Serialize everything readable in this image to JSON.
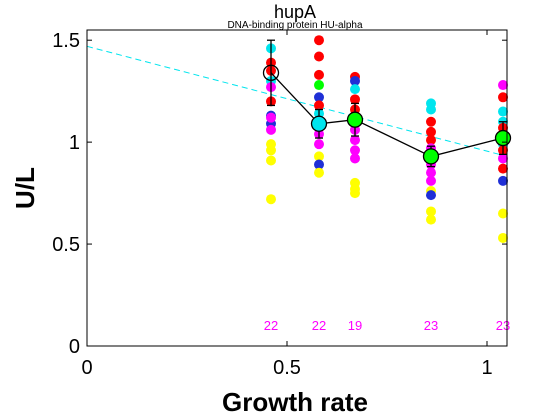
{
  "chart_data": {
    "type": "scatter",
    "title": "hupA",
    "subtitle": "DNA-binding protein HU-alpha",
    "xlabel": "Growth rate",
    "ylabel": "U/L",
    "xlim": [
      0,
      1.05
    ],
    "ylim": [
      0,
      1.55
    ],
    "xticks": [
      0,
      0.5,
      1
    ],
    "yticks": [
      0,
      0.5,
      1,
      1.5
    ],
    "xtick_labels": [
      "0",
      "0.5",
      "1"
    ],
    "ytick_labels": [
      "0",
      "0.5",
      "1",
      "1.5"
    ],
    "grid": false,
    "replicate_groups": [
      {
        "x": 0.46,
        "points": [
          {
            "y": 1.46,
            "color": "#00e5ee"
          },
          {
            "y": 1.39,
            "color": "#ff0000"
          },
          {
            "y": 1.35,
            "color": "#ff0000"
          },
          {
            "y": 1.3,
            "color": "#00e5ee"
          },
          {
            "y": 1.27,
            "color": "#ff00ff"
          },
          {
            "y": 1.2,
            "color": "#ff0000"
          },
          {
            "y": 1.13,
            "color": "#1f2fd6"
          },
          {
            "y": 1.09,
            "color": "#1f2fd6"
          },
          {
            "y": 1.06,
            "color": "#ff00ff"
          },
          {
            "y": 1.12,
            "color": "#ff00ff"
          },
          {
            "y": 0.99,
            "color": "#ffff00"
          },
          {
            "y": 0.96,
            "color": "#ffff00"
          },
          {
            "y": 0.91,
            "color": "#ffff00"
          },
          {
            "y": 0.72,
            "color": "#ffff00"
          }
        ]
      },
      {
        "x": 0.58,
        "points": [
          {
            "y": 1.5,
            "color": "#ff0000"
          },
          {
            "y": 1.42,
            "color": "#ff0000"
          },
          {
            "y": 1.33,
            "color": "#ff0000"
          },
          {
            "y": 1.28,
            "color": "#00ff00"
          },
          {
            "y": 1.22,
            "color": "#1f2fd6"
          },
          {
            "y": 1.18,
            "color": "#ff0000"
          },
          {
            "y": 1.14,
            "color": "#00e5ee"
          },
          {
            "y": 1.08,
            "color": "#ff00ff"
          },
          {
            "y": 1.04,
            "color": "#ff00ff"
          },
          {
            "y": 0.99,
            "color": "#ff00ff"
          },
          {
            "y": 0.93,
            "color": "#ffff00"
          },
          {
            "y": 0.89,
            "color": "#1f2fd6"
          },
          {
            "y": 0.85,
            "color": "#ffff00"
          }
        ]
      },
      {
        "x": 0.67,
        "points": [
          {
            "y": 1.32,
            "color": "#ff0000"
          },
          {
            "y": 1.3,
            "color": "#1f2fd6"
          },
          {
            "y": 1.26,
            "color": "#00e5ee"
          },
          {
            "y": 1.21,
            "color": "#ff0000"
          },
          {
            "y": 1.16,
            "color": "#ff0000"
          },
          {
            "y": 1.1,
            "color": "#ff0000"
          },
          {
            "y": 1.06,
            "color": "#ff00ff"
          },
          {
            "y": 1.01,
            "color": "#ff00ff"
          },
          {
            "y": 0.96,
            "color": "#ff00ff"
          },
          {
            "y": 0.92,
            "color": "#ff00ff"
          },
          {
            "y": 0.8,
            "color": "#ffff00"
          },
          {
            "y": 0.77,
            "color": "#ffff00"
          },
          {
            "y": 0.75,
            "color": "#ffff00"
          }
        ]
      },
      {
        "x": 0.86,
        "points": [
          {
            "y": 1.19,
            "color": "#00e5ee"
          },
          {
            "y": 1.16,
            "color": "#00e5ee"
          },
          {
            "y": 1.1,
            "color": "#ff0000"
          },
          {
            "y": 1.05,
            "color": "#ff0000"
          },
          {
            "y": 1.01,
            "color": "#ff0000"
          },
          {
            "y": 0.97,
            "color": "#ff00ff"
          },
          {
            "y": 0.94,
            "color": "#1f2fd6"
          },
          {
            "y": 0.89,
            "color": "#ff00ff"
          },
          {
            "y": 0.85,
            "color": "#ff00ff"
          },
          {
            "y": 0.81,
            "color": "#ff00ff"
          },
          {
            "y": 0.76,
            "color": "#ffff00"
          },
          {
            "y": 0.74,
            "color": "#1f2fd6"
          },
          {
            "y": 0.66,
            "color": "#ffff00"
          },
          {
            "y": 0.62,
            "color": "#ffff00"
          }
        ]
      },
      {
        "x": 1.04,
        "points": [
          {
            "y": 1.28,
            "color": "#ff00ff"
          },
          {
            "y": 1.22,
            "color": "#ff0000"
          },
          {
            "y": 1.15,
            "color": "#00e5ee"
          },
          {
            "y": 1.1,
            "color": "#00e5ee"
          },
          {
            "y": 1.07,
            "color": "#ff0000"
          },
          {
            "y": 1.04,
            "color": "#ff0000"
          },
          {
            "y": 0.99,
            "color": "#00e5ee"
          },
          {
            "y": 0.96,
            "color": "#ff0000"
          },
          {
            "y": 0.92,
            "color": "#ff00ff"
          },
          {
            "y": 0.87,
            "color": "#ff0000"
          },
          {
            "y": 0.81,
            "color": "#1f2fd6"
          },
          {
            "y": 0.65,
            "color": "#ffff00"
          },
          {
            "y": 0.53,
            "color": "#ffff00"
          }
        ]
      }
    ],
    "means": [
      {
        "x": 0.46,
        "y": 1.34,
        "err": 0.16,
        "fill": "none"
      },
      {
        "x": 0.58,
        "y": 1.09,
        "err": 0.07,
        "fill": "#00e5ee"
      },
      {
        "x": 0.67,
        "y": 1.11,
        "err": 0.08,
        "fill": "#00ff00"
      },
      {
        "x": 0.86,
        "y": 0.93,
        "err": 0.05,
        "fill": "#00ff00"
      },
      {
        "x": 1.04,
        "y": 1.02,
        "err": 0.08,
        "fill": "#00ff00"
      }
    ],
    "trend_line": {
      "x": [
        0,
        1.05
      ],
      "y": [
        1.47,
        0.93
      ],
      "color": "#00e5ee",
      "style": "dashed"
    },
    "counts": [
      {
        "x": 0.46,
        "label": "22"
      },
      {
        "x": 0.58,
        "label": "22"
      },
      {
        "x": 0.67,
        "label": "19"
      },
      {
        "x": 0.86,
        "label": "23"
      },
      {
        "x": 1.04,
        "label": "23"
      }
    ],
    "count_color": "#ff00ff"
  }
}
